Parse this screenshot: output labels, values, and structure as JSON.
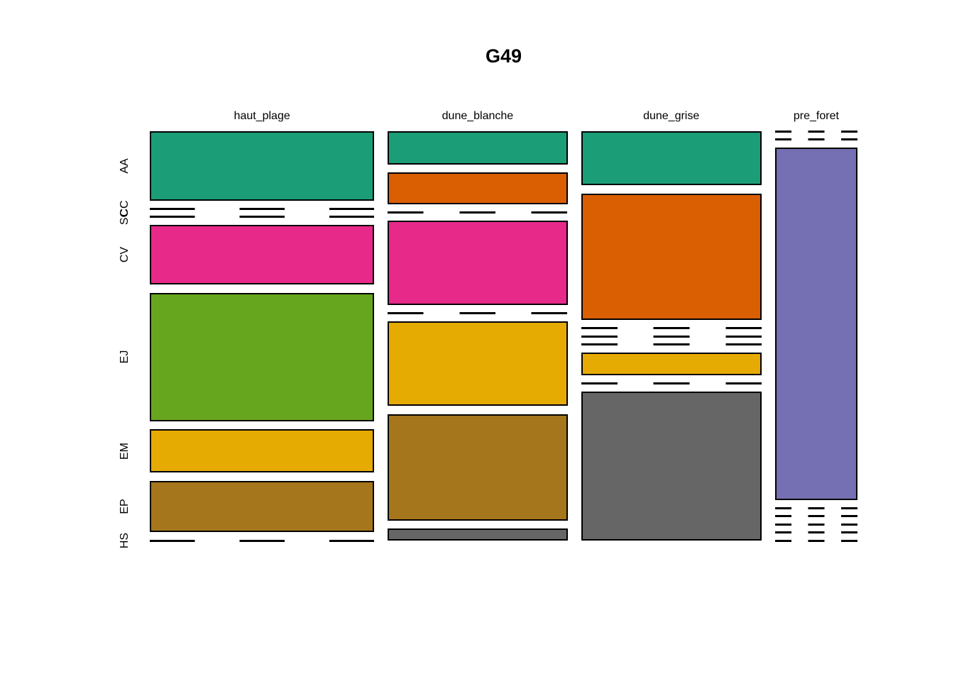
{
  "title": "G49",
  "chart_data": {
    "type": "mosaic",
    "title": "G49",
    "x_categories": [
      "haut_plage",
      "dune_blanche",
      "dune_grise",
      "pre_foret"
    ],
    "y_categories": [
      "AA",
      "CC",
      "SC",
      "CV",
      "EJ",
      "EM",
      "EP",
      "HS"
    ],
    "column_shares": [
      0.3365,
      0.2694,
      0.2705,
      0.1236
    ],
    "cell_proportions": {
      "haut_plage": {
        "AA": 0.197,
        "CC": 0,
        "SC": 0,
        "CV": 0.169,
        "EJ": 0.365,
        "EM": 0.122,
        "EP": 0.147,
        "HS": 0
      },
      "dune_blanche": {
        "AA": 0.094,
        "CC": 0.09,
        "SC": 0,
        "CV": 0.24,
        "EJ": 0,
        "EM": 0.24,
        "EP": 0.302,
        "HS": 0.034
      },
      "dune_grise": {
        "AA": 0.154,
        "CC": 0.359,
        "SC": 0,
        "CV": 0,
        "EJ": 0,
        "EM": 0.064,
        "EP": 0,
        "HS": 0.423
      },
      "pre_foret": {
        "AA": 0,
        "CC": 0,
        "SC": 1.0,
        "CV": 0,
        "EJ": 0,
        "EM": 0,
        "EP": 0,
        "HS": 0
      }
    },
    "row_colors": {
      "AA": "#1B9E77",
      "CC": "#D95F02",
      "SC": "#7570B3",
      "CV": "#E7298A",
      "EJ": "#66A61E",
      "EM": "#E6AB02",
      "EP": "#A6761D",
      "HS": "#666666"
    },
    "zero_cell_style": "dashed-line",
    "border_color": "#000000",
    "background": "#FFFFFF",
    "legend": "none",
    "grid": false
  }
}
